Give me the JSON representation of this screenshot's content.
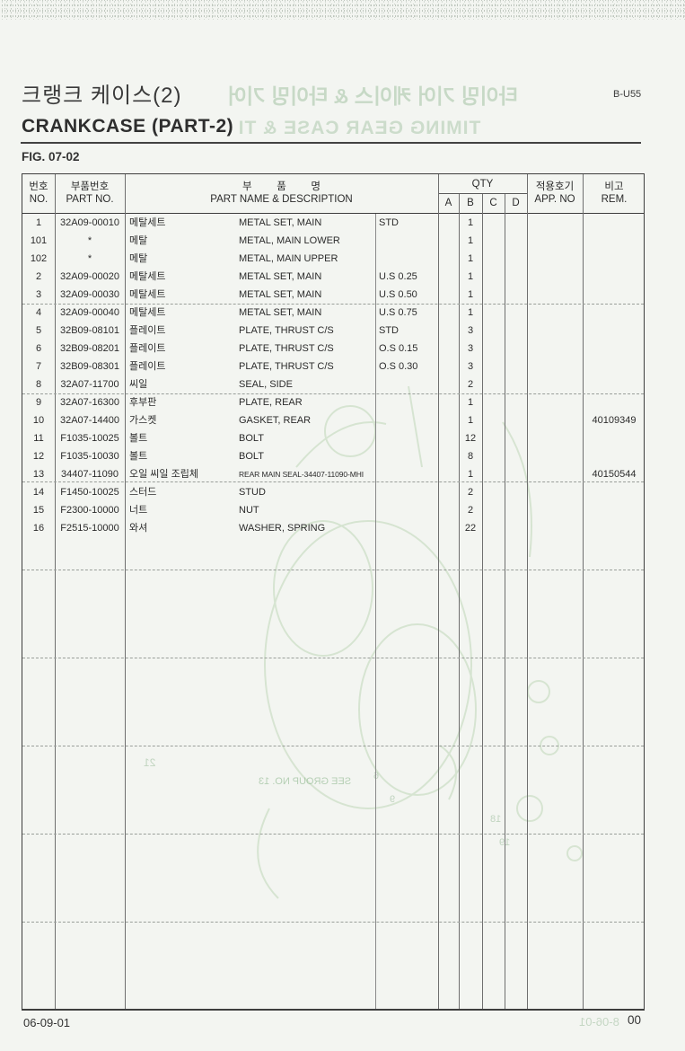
{
  "header": {
    "title_kr": "크랭크 케이스(2)",
    "title_en": "CRANKCASE (PART-2)",
    "doc_code": "B-U55",
    "figure": "FIG. 07-02"
  },
  "table": {
    "columns": {
      "no_kr": "번호",
      "no_en": "NO.",
      "part_kr": "부품번호",
      "part_en": "PART NO.",
      "name_kr": "부품명",
      "name_en": "PART NAME & DESCRIPTION",
      "qty": "QTY",
      "qty_sub": [
        "A",
        "B",
        "C",
        "D"
      ],
      "app_kr": "적용호기",
      "app_en": "APP. NO",
      "rem_kr": "비고",
      "rem_en": "REM."
    },
    "rows": [
      {
        "no": "1",
        "part_no": "32A09-00010",
        "name_kr": "메탈세트",
        "name_en": "METAL SET, MAIN",
        "size": "STD",
        "qty_a": "",
        "qty_b": "1",
        "qty_c": "",
        "qty_d": "",
        "app_no": "",
        "rem": ""
      },
      {
        "no": "101",
        "part_no": "*",
        "name_kr": "메탈",
        "name_en": "METAL, MAIN LOWER",
        "size": "",
        "qty_a": "",
        "qty_b": "1",
        "qty_c": "",
        "qty_d": "",
        "app_no": "",
        "rem": ""
      },
      {
        "no": "102",
        "part_no": "*",
        "name_kr": "메탈",
        "name_en": "METAL, MAIN UPPER",
        "size": "",
        "qty_a": "",
        "qty_b": "1",
        "qty_c": "",
        "qty_d": "",
        "app_no": "",
        "rem": ""
      },
      {
        "no": "2",
        "part_no": "32A09-00020",
        "name_kr": "메탈세트",
        "name_en": "METAL SET, MAIN",
        "size": "U.S 0.25",
        "qty_a": "",
        "qty_b": "1",
        "qty_c": "",
        "qty_d": "",
        "app_no": "",
        "rem": ""
      },
      {
        "no": "3",
        "part_no": "32A09-00030",
        "name_kr": "메탈세트",
        "name_en": "METAL SET, MAIN",
        "size": "U.S 0.50",
        "qty_a": "",
        "qty_b": "1",
        "qty_c": "",
        "qty_d": "",
        "app_no": "",
        "rem": ""
      },
      {
        "no": "4",
        "part_no": "32A09-00040",
        "name_kr": "메탈세트",
        "name_en": "METAL SET, MAIN",
        "size": "U.S 0.75",
        "qty_a": "",
        "qty_b": "1",
        "qty_c": "",
        "qty_d": "",
        "app_no": "",
        "rem": ""
      },
      {
        "no": "5",
        "part_no": "32B09-08101",
        "name_kr": "플레이트",
        "name_en": "PLATE, THRUST C/S",
        "size": "STD",
        "qty_a": "",
        "qty_b": "3",
        "qty_c": "",
        "qty_d": "",
        "app_no": "",
        "rem": ""
      },
      {
        "no": "6",
        "part_no": "32B09-08201",
        "name_kr": "플레이트",
        "name_en": "PLATE, THRUST C/S",
        "size": "O.S 0.15",
        "qty_a": "",
        "qty_b": "3",
        "qty_c": "",
        "qty_d": "",
        "app_no": "",
        "rem": ""
      },
      {
        "no": "7",
        "part_no": "32B09-08301",
        "name_kr": "플레이트",
        "name_en": "PLATE, THRUST C/S",
        "size": "O.S 0.30",
        "qty_a": "",
        "qty_b": "3",
        "qty_c": "",
        "qty_d": "",
        "app_no": "",
        "rem": ""
      },
      {
        "no": "8",
        "part_no": "32A07-11700",
        "name_kr": "씨일",
        "name_en": "SEAL, SIDE",
        "size": "",
        "qty_a": "",
        "qty_b": "2",
        "qty_c": "",
        "qty_d": "",
        "app_no": "",
        "rem": ""
      },
      {
        "no": "9",
        "part_no": "32A07-16300",
        "name_kr": "후부판",
        "name_en": "PLATE, REAR",
        "size": "",
        "qty_a": "",
        "qty_b": "1",
        "qty_c": "",
        "qty_d": "",
        "app_no": "",
        "rem": ""
      },
      {
        "no": "10",
        "part_no": "32A07-14400",
        "name_kr": "가스켓",
        "name_en": "GASKET, REAR",
        "size": "",
        "qty_a": "",
        "qty_b": "1",
        "qty_c": "",
        "qty_d": "",
        "app_no": "",
        "rem": "40109349"
      },
      {
        "no": "11",
        "part_no": "F1035-10025",
        "name_kr": "볼트",
        "name_en": "BOLT",
        "size": "",
        "qty_a": "",
        "qty_b": "12",
        "qty_c": "",
        "qty_d": "",
        "app_no": "",
        "rem": ""
      },
      {
        "no": "12",
        "part_no": "F1035-10030",
        "name_kr": "볼트",
        "name_en": "BOLT",
        "size": "",
        "qty_a": "",
        "qty_b": "8",
        "qty_c": "",
        "qty_d": "",
        "app_no": "",
        "rem": ""
      },
      {
        "no": "13",
        "part_no": "34407-11090",
        "name_kr": "오일 씨일 조립체",
        "name_en": "REAR MAIN SEAL-34407-11090-MHI",
        "size": "",
        "qty_a": "",
        "qty_b": "1",
        "qty_c": "",
        "qty_d": "",
        "app_no": "",
        "rem": "40150544"
      },
      {
        "no": "14",
        "part_no": "F1450-10025",
        "name_kr": "스터드",
        "name_en": "STUD",
        "size": "",
        "qty_a": "",
        "qty_b": "2",
        "qty_c": "",
        "qty_d": "",
        "app_no": "",
        "rem": ""
      },
      {
        "no": "15",
        "part_no": "F2300-10000",
        "name_kr": "너트",
        "name_en": "NUT",
        "size": "",
        "qty_a": "",
        "qty_b": "2",
        "qty_c": "",
        "qty_d": "",
        "app_no": "",
        "rem": ""
      },
      {
        "no": "16",
        "part_no": "F2515-10000",
        "name_kr": "와셔",
        "name_en": "WASHER, SPRING",
        "size": "",
        "qty_a": "",
        "qty_b": "22",
        "qty_c": "",
        "qty_d": "",
        "app_no": "",
        "rem": ""
      }
    ]
  },
  "footer": {
    "date": "06-09-01",
    "page": "00"
  },
  "watermark": {
    "color": "#8fb48f",
    "header_kr": "타이밍 기어 케이스 & 타이밍 기어",
    "header_en": "TIMING GEAR CASE & TI",
    "see_group": "SEE GROUP NO. 13",
    "footer": "8-06-01",
    "digits": [
      "21",
      "6",
      "9",
      "18",
      "19"
    ]
  }
}
